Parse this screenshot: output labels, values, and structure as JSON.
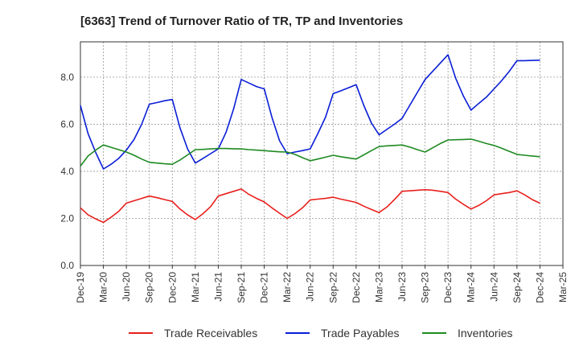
{
  "chart_data": {
    "type": "line",
    "title": "[6363]  Trend of Turnover Ratio of TR, TP and Inventories",
    "xlabel": "",
    "ylabel": "",
    "ylim": [
      0.0,
      9.5
    ],
    "y_ticks": [
      "0.0",
      "2.0",
      "4.0",
      "6.0",
      "8.0"
    ],
    "x_tick_labels": [
      "Dec-19",
      "Mar-20",
      "Jun-20",
      "Sep-20",
      "Dec-20",
      "Mar-21",
      "Jun-21",
      "Sep-21",
      "Dec-21",
      "Mar-22",
      "Jun-22",
      "Sep-22",
      "Dec-22",
      "Mar-23",
      "Jun-23",
      "Sep-23",
      "Dec-23",
      "Mar-24",
      "Jun-24",
      "Sep-24",
      "Dec-24",
      "Mar-25"
    ],
    "x": [
      "Dec-19",
      "Jan-20",
      "Feb-20",
      "Mar-20",
      "Apr-20",
      "May-20",
      "Jun-20",
      "Jul-20",
      "Aug-20",
      "Sep-20",
      "Oct-20",
      "Nov-20",
      "Dec-20",
      "Jan-21",
      "Feb-21",
      "Mar-21",
      "Apr-21",
      "May-21",
      "Jun-21",
      "Jul-21",
      "Aug-21",
      "Sep-21",
      "Oct-21",
      "Nov-21",
      "Dec-21",
      "Jan-22",
      "Feb-22",
      "Mar-22",
      "Apr-22",
      "May-22",
      "Jun-22",
      "Jul-22",
      "Aug-22",
      "Sep-22",
      "Oct-22",
      "Nov-22",
      "Dec-22",
      "Jan-23",
      "Feb-23",
      "Mar-23",
      "Apr-23",
      "May-23",
      "Jun-23",
      "Jul-23",
      "Aug-23",
      "Sep-23",
      "Oct-23",
      "Nov-23",
      "Dec-23",
      "Jan-24",
      "Feb-24",
      "Mar-24",
      "Apr-24",
      "May-24",
      "Jun-24",
      "Jul-24",
      "Aug-24",
      "Sep-24",
      "Oct-24",
      "Nov-24",
      "Dec-24"
    ],
    "grid": true,
    "legend_position": "bottom",
    "series": [
      {
        "name": "Trade Receivables",
        "color": "#e8201c",
        "values": [
          2.45,
          2.15,
          1.98,
          1.83,
          2.05,
          2.3,
          2.65,
          2.75,
          2.85,
          2.95,
          2.88,
          2.8,
          2.72,
          2.4,
          2.15,
          1.95,
          2.2,
          2.5,
          2.95,
          3.05,
          3.15,
          3.25,
          3.02,
          2.85,
          2.7,
          2.45,
          2.22,
          2.0,
          2.2,
          2.45,
          2.78,
          2.82,
          2.85,
          2.9,
          2.82,
          2.75,
          2.68,
          2.52,
          2.38,
          2.25,
          2.48,
          2.8,
          3.15,
          3.17,
          3.2,
          3.22,
          3.2,
          3.15,
          3.1,
          2.82,
          2.6,
          2.4,
          2.55,
          2.75,
          3.0,
          3.05,
          3.1,
          3.17,
          3.0,
          2.8,
          2.65
        ]
      },
      {
        "name": "Trade Payables",
        "color": "#0a1ed6",
        "values": [
          6.8,
          5.6,
          4.8,
          4.1,
          4.3,
          4.55,
          4.9,
          5.35,
          6.0,
          6.85,
          6.92,
          7.0,
          7.05,
          5.85,
          4.95,
          4.35,
          4.55,
          4.75,
          4.95,
          5.65,
          6.65,
          7.9,
          7.75,
          7.6,
          7.5,
          6.3,
          5.3,
          4.75,
          4.82,
          4.88,
          4.95,
          5.6,
          6.3,
          7.3,
          7.42,
          7.55,
          7.68,
          6.8,
          6.05,
          5.55,
          5.78,
          6.0,
          6.25,
          6.8,
          7.35,
          7.9,
          8.25,
          8.6,
          8.95,
          7.95,
          7.2,
          6.6,
          6.88,
          7.15,
          7.5,
          7.85,
          8.25,
          8.7,
          8.7,
          8.71,
          8.72
        ]
      },
      {
        "name": "Inventories",
        "color": "#1f8a22",
        "values": [
          4.22,
          4.65,
          4.9,
          5.12,
          5.02,
          4.92,
          4.82,
          4.68,
          4.52,
          4.38,
          4.35,
          4.32,
          4.3,
          4.48,
          4.7,
          4.92,
          4.93,
          4.95,
          4.97,
          4.97,
          4.96,
          4.95,
          4.92,
          4.9,
          4.88,
          4.85,
          4.83,
          4.82,
          4.72,
          4.58,
          4.45,
          4.52,
          4.6,
          4.68,
          4.62,
          4.57,
          4.52,
          4.7,
          4.88,
          5.05,
          5.08,
          5.1,
          5.12,
          5.03,
          4.92,
          4.82,
          5.0,
          5.18,
          5.33,
          5.34,
          5.35,
          5.37,
          5.28,
          5.18,
          5.1,
          4.98,
          4.85,
          4.72,
          4.68,
          4.65,
          4.62
        ]
      }
    ]
  }
}
